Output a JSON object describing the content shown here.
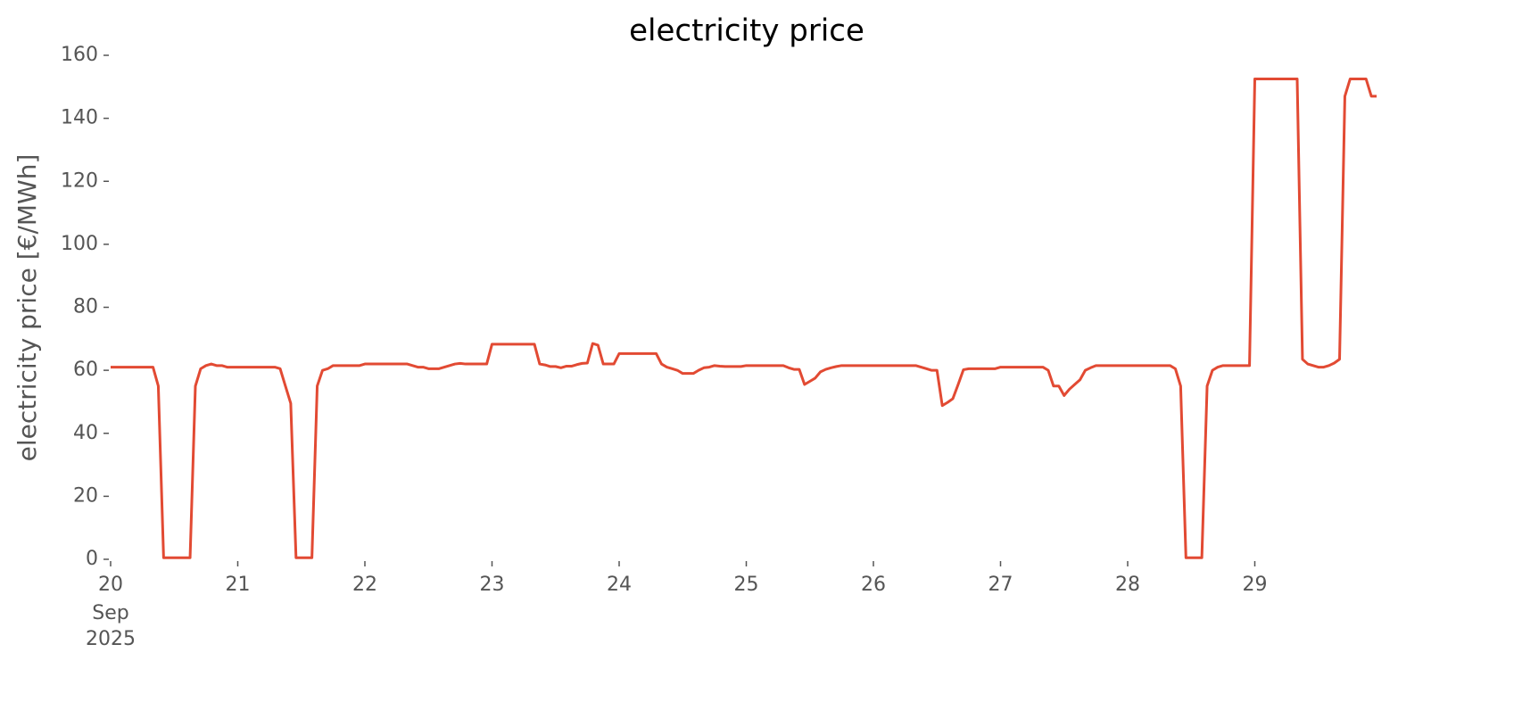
{
  "chart_data": {
    "type": "line",
    "title": "electricity price",
    "y_label": "electricity price [€/MWh]",
    "xlim": [
      "2025-09-20 00:00",
      "2025-09-30 00:00"
    ],
    "xticks": [
      {
        "value": "2025-09-20 00:00",
        "label": "20"
      },
      {
        "value": "2025-09-21 00:00",
        "label": "21"
      },
      {
        "value": "2025-09-22 00:00",
        "label": "22"
      },
      {
        "value": "2025-09-23 00:00",
        "label": "23"
      },
      {
        "value": "2025-09-24 00:00",
        "label": "24"
      },
      {
        "value": "2025-09-25 00:00",
        "label": "25"
      },
      {
        "value": "2025-09-26 00:00",
        "label": "26"
      },
      {
        "value": "2025-09-27 00:00",
        "label": "27"
      },
      {
        "value": "2025-09-28 00:00",
        "label": "28"
      },
      {
        "value": "2025-09-29 00:00",
        "label": "29"
      }
    ],
    "x_tick_date_parts": [
      "Sep",
      "2025"
    ],
    "ylim": [
      0,
      160
    ],
    "yticks": [
      0,
      20,
      40,
      60,
      80,
      100,
      120,
      140,
      160
    ],
    "grid": false,
    "x": [
      "2025-09-20 00:00",
      "2025-09-20 01:00",
      "2025-09-20 02:00",
      "2025-09-20 03:00",
      "2025-09-20 04:00",
      "2025-09-20 05:00",
      "2025-09-20 06:00",
      "2025-09-20 07:00",
      "2025-09-20 08:00",
      "2025-09-20 09:00",
      "2025-09-20 10:00",
      "2025-09-20 11:00",
      "2025-09-20 12:00",
      "2025-09-20 13:00",
      "2025-09-20 14:00",
      "2025-09-20 15:00",
      "2025-09-20 16:00",
      "2025-09-20 17:00",
      "2025-09-20 18:00",
      "2025-09-20 19:00",
      "2025-09-20 20:00",
      "2025-09-20 21:00",
      "2025-09-20 22:00",
      "2025-09-20 23:00",
      "2025-09-21 00:00",
      "2025-09-21 01:00",
      "2025-09-21 02:00",
      "2025-09-21 03:00",
      "2025-09-21 04:00",
      "2025-09-21 05:00",
      "2025-09-21 06:00",
      "2025-09-21 07:00",
      "2025-09-21 08:00",
      "2025-09-21 09:00",
      "2025-09-21 10:00",
      "2025-09-21 11:00",
      "2025-09-21 12:00",
      "2025-09-21 13:00",
      "2025-09-21 14:00",
      "2025-09-21 15:00",
      "2025-09-21 16:00",
      "2025-09-21 17:00",
      "2025-09-21 18:00",
      "2025-09-21 19:00",
      "2025-09-21 20:00",
      "2025-09-21 21:00",
      "2025-09-21 22:00",
      "2025-09-21 23:00",
      "2025-09-22 00:00",
      "2025-09-22 01:00",
      "2025-09-22 02:00",
      "2025-09-22 03:00",
      "2025-09-22 04:00",
      "2025-09-22 05:00",
      "2025-09-22 06:00",
      "2025-09-22 07:00",
      "2025-09-22 08:00",
      "2025-09-22 09:00",
      "2025-09-22 10:00",
      "2025-09-22 11:00",
      "2025-09-22 12:00",
      "2025-09-22 13:00",
      "2025-09-22 14:00",
      "2025-09-22 15:00",
      "2025-09-22 16:00",
      "2025-09-22 17:00",
      "2025-09-22 18:00",
      "2025-09-22 19:00",
      "2025-09-22 20:00",
      "2025-09-22 21:00",
      "2025-09-22 22:00",
      "2025-09-22 23:00",
      "2025-09-23 00:00",
      "2025-09-23 01:00",
      "2025-09-23 02:00",
      "2025-09-23 03:00",
      "2025-09-23 04:00",
      "2025-09-23 05:00",
      "2025-09-23 06:00",
      "2025-09-23 07:00",
      "2025-09-23 08:00",
      "2025-09-23 09:00",
      "2025-09-23 10:00",
      "2025-09-23 11:00",
      "2025-09-23 12:00",
      "2025-09-23 13:00",
      "2025-09-23 14:00",
      "2025-09-23 15:00",
      "2025-09-23 16:00",
      "2025-09-23 17:00",
      "2025-09-23 18:00",
      "2025-09-23 19:00",
      "2025-09-23 20:00",
      "2025-09-23 21:00",
      "2025-09-23 22:00",
      "2025-09-23 23:00",
      "2025-09-24 00:00",
      "2025-09-24 01:00",
      "2025-09-24 02:00",
      "2025-09-24 03:00",
      "2025-09-24 04:00",
      "2025-09-24 05:00",
      "2025-09-24 06:00",
      "2025-09-24 07:00",
      "2025-09-24 08:00",
      "2025-09-24 09:00",
      "2025-09-24 10:00",
      "2025-09-24 11:00",
      "2025-09-24 12:00",
      "2025-09-24 13:00",
      "2025-09-24 14:00",
      "2025-09-24 15:00",
      "2025-09-24 16:00",
      "2025-09-24 17:00",
      "2025-09-24 18:00",
      "2025-09-24 19:00",
      "2025-09-24 20:00",
      "2025-09-24 21:00",
      "2025-09-24 22:00",
      "2025-09-24 23:00",
      "2025-09-25 00:00",
      "2025-09-25 01:00",
      "2025-09-25 02:00",
      "2025-09-25 03:00",
      "2025-09-25 04:00",
      "2025-09-25 05:00",
      "2025-09-25 06:00",
      "2025-09-25 07:00",
      "2025-09-25 08:00",
      "2025-09-25 09:00",
      "2025-09-25 10:00",
      "2025-09-25 11:00",
      "2025-09-25 12:00",
      "2025-09-25 13:00",
      "2025-09-25 14:00",
      "2025-09-25 15:00",
      "2025-09-25 16:00",
      "2025-09-25 17:00",
      "2025-09-25 18:00",
      "2025-09-25 19:00",
      "2025-09-25 20:00",
      "2025-09-25 21:00",
      "2025-09-25 22:00",
      "2025-09-25 23:00",
      "2025-09-26 00:00",
      "2025-09-26 01:00",
      "2025-09-26 02:00",
      "2025-09-26 03:00",
      "2025-09-26 04:00",
      "2025-09-26 05:00",
      "2025-09-26 06:00",
      "2025-09-26 07:00",
      "2025-09-26 08:00",
      "2025-09-26 09:00",
      "2025-09-26 10:00",
      "2025-09-26 11:00",
      "2025-09-26 12:00",
      "2025-09-26 13:00",
      "2025-09-26 14:00",
      "2025-09-26 15:00",
      "2025-09-26 16:00",
      "2025-09-26 17:00",
      "2025-09-26 18:00",
      "2025-09-26 19:00",
      "2025-09-26 20:00",
      "2025-09-26 21:00",
      "2025-09-26 22:00",
      "2025-09-26 23:00",
      "2025-09-27 00:00",
      "2025-09-27 01:00",
      "2025-09-27 02:00",
      "2025-09-27 03:00",
      "2025-09-27 04:00",
      "2025-09-27 05:00",
      "2025-09-27 06:00",
      "2025-09-27 07:00",
      "2025-09-27 08:00",
      "2025-09-27 09:00",
      "2025-09-27 10:00",
      "2025-09-27 11:00",
      "2025-09-27 12:00",
      "2025-09-27 13:00",
      "2025-09-27 14:00",
      "2025-09-27 15:00",
      "2025-09-27 16:00",
      "2025-09-27 17:00",
      "2025-09-27 18:00",
      "2025-09-27 19:00",
      "2025-09-27 20:00",
      "2025-09-27 21:00",
      "2025-09-27 22:00",
      "2025-09-27 23:00",
      "2025-09-28 00:00",
      "2025-09-28 01:00",
      "2025-09-28 02:00",
      "2025-09-28 03:00",
      "2025-09-28 04:00",
      "2025-09-28 05:00",
      "2025-09-28 06:00",
      "2025-09-28 07:00",
      "2025-09-28 08:00",
      "2025-09-28 09:00",
      "2025-09-28 10:00",
      "2025-09-28 11:00",
      "2025-09-28 12:00",
      "2025-09-28 13:00",
      "2025-09-28 14:00",
      "2025-09-28 15:00",
      "2025-09-28 16:00",
      "2025-09-28 17:00",
      "2025-09-28 18:00",
      "2025-09-28 19:00",
      "2025-09-28 20:00",
      "2025-09-28 21:00",
      "2025-09-28 22:00",
      "2025-09-28 23:00",
      "2025-09-29 00:00",
      "2025-09-29 01:00",
      "2025-09-29 02:00",
      "2025-09-29 03:00",
      "2025-09-29 04:00",
      "2025-09-29 05:00",
      "2025-09-29 06:00",
      "2025-09-29 07:00",
      "2025-09-29 08:00",
      "2025-09-29 09:00",
      "2025-09-29 10:00",
      "2025-09-29 11:00",
      "2025-09-29 12:00",
      "2025-09-29 13:00",
      "2025-09-29 14:00",
      "2025-09-29 15:00",
      "2025-09-29 16:00",
      "2025-09-29 17:00",
      "2025-09-29 18:00",
      "2025-09-29 19:00",
      "2025-09-29 20:00",
      "2025-09-29 21:00",
      "2025-09-29 22:00",
      "2025-09-29 23:00"
    ],
    "series": [
      {
        "name": "electricity price",
        "color": "#E24A33",
        "values": [
          61,
          61,
          61,
          61,
          61,
          61,
          61,
          61,
          61,
          55,
          0.5,
          0.5,
          0.5,
          0.5,
          0.5,
          0.5,
          55,
          60.5,
          61.5,
          62,
          61.5,
          61.5,
          61,
          61,
          61,
          61,
          61,
          61,
          61,
          61,
          61,
          61,
          60.5,
          55,
          49.5,
          0.5,
          0.5,
          0.5,
          0.5,
          55,
          60,
          60.5,
          61.5,
          61.5,
          61.5,
          61.5,
          61.5,
          61.5,
          62,
          62,
          62,
          62,
          62,
          62,
          62,
          62,
          62,
          61.5,
          61,
          61,
          60.5,
          60.5,
          60.5,
          61,
          61.5,
          62,
          62.2,
          62,
          62,
          62,
          62,
          62,
          68.3,
          68.3,
          68.3,
          68.3,
          68.3,
          68.3,
          68.3,
          68.3,
          68.3,
          62,
          61.7,
          61.2,
          61.2,
          60.8,
          61.3,
          61.3,
          61.8,
          62.2,
          62.3,
          68.5,
          68,
          62,
          62,
          62,
          65.3,
          65.3,
          65.3,
          65.3,
          65.3,
          65.3,
          65.3,
          65.3,
          62,
          61,
          60.5,
          60,
          59,
          59,
          59,
          60,
          60.8,
          61,
          61.5,
          61.3,
          61.2,
          61.2,
          61.2,
          61.2,
          61.5,
          61.5,
          61.5,
          61.5,
          61.5,
          61.5,
          61.5,
          61.5,
          60.8,
          60.3,
          60.3,
          55.5,
          56.5,
          57.5,
          59.5,
          60.3,
          60.8,
          61.2,
          61.5,
          61.5,
          61.5,
          61.5,
          61.5,
          61.5,
          61.5,
          61.5,
          61.5,
          61.5,
          61.5,
          61.5,
          61.5,
          61.5,
          61.5,
          61,
          60.5,
          60,
          60,
          48.8,
          49.8,
          51,
          55.5,
          60.2,
          60.5,
          60.5,
          60.5,
          60.5,
          60.5,
          60.5,
          61,
          61,
          61,
          61,
          61,
          61,
          61,
          61,
          61,
          60,
          55,
          55,
          52,
          54,
          55.5,
          57,
          60,
          60.8,
          61.5,
          61.5,
          61.5,
          61.5,
          61.5,
          61.5,
          61.5,
          61.5,
          61.5,
          61.5,
          61.5,
          61.5,
          61.5,
          61.5,
          61.5,
          60.5,
          55,
          0.5,
          0.5,
          0.5,
          0.5,
          55,
          60,
          61,
          61.5,
          61.5,
          61.5,
          61.5,
          61.5,
          61.5,
          152.5,
          152.5,
          152.5,
          152.5,
          152.5,
          152.5,
          152.5,
          152.5,
          152.5,
          63.5,
          62,
          61.5,
          61,
          61,
          61.5,
          62.3,
          63.5,
          147,
          152.5,
          152.5,
          152.5,
          152.5,
          147,
          147
        ]
      }
    ]
  }
}
